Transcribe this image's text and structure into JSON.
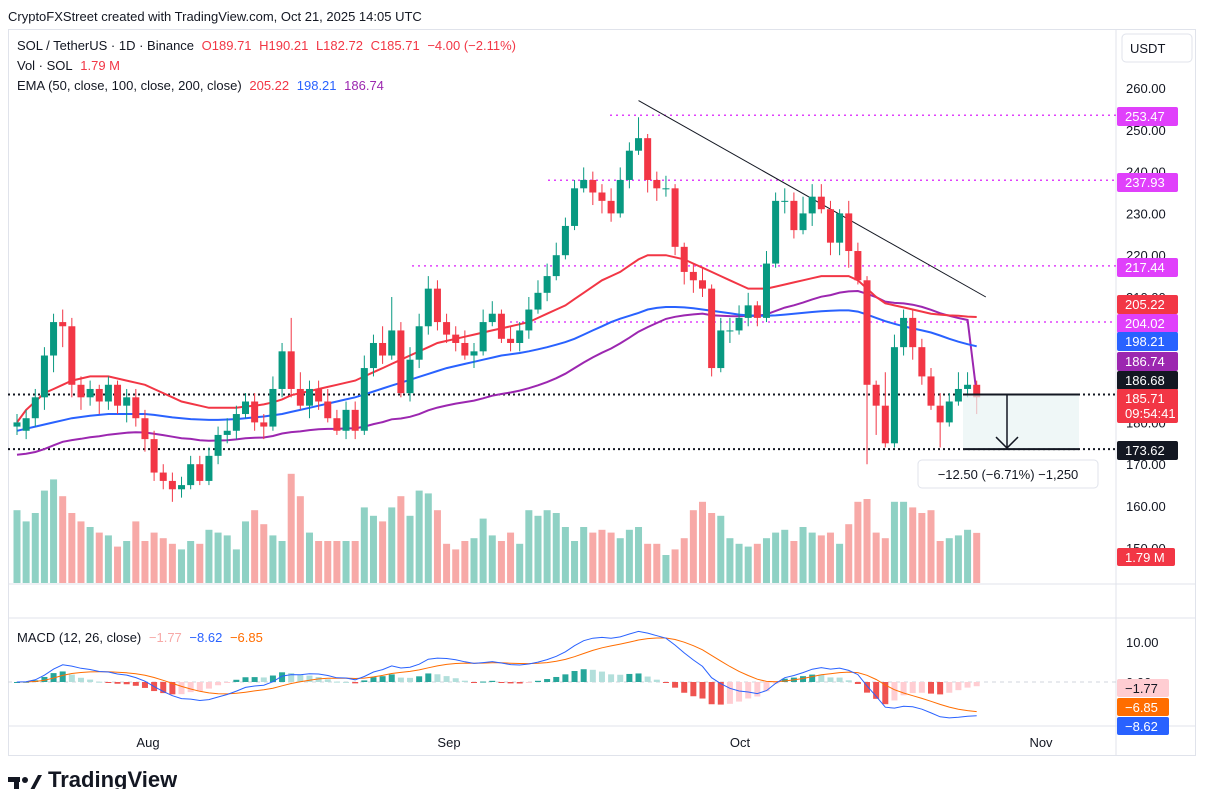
{
  "caption": "CryptoFXStreet created with TradingView.com, Oct 21, 2025 14:05 UTC",
  "brand": "TradingView",
  "currency_button": "USDT",
  "legend": {
    "symbol": "SOL / TetherUS · 1D · Binance",
    "open": "O189.71",
    "high": "H190.21",
    "low": "L182.72",
    "close": "C185.71",
    "change": "−4.00 (−2.11%)",
    "vol_label": "Vol · SOL",
    "vol_value": "1.79 M",
    "ema_label": "EMA (50, close, 100, close, 200, close)",
    "ema50": "205.22",
    "ema100": "198.21",
    "ema200": "186.74",
    "macd_label": "MACD (12, 26, close)",
    "macd_hist": "−1.77",
    "macd_line": "−8.62",
    "macd_signal": "−6.85"
  },
  "measure_label": "−12.50 (−6.71%) −1,250",
  "colors": {
    "up": "#089981",
    "down": "#f23645",
    "ema50": "#f23645",
    "ema100": "#2962ff",
    "ema200": "#9c27b0",
    "resistance": "#e040fb",
    "macd_line": "#2962ff",
    "signal_line": "#ff6d00",
    "vol_up": "#8fd1c4",
    "vol_down": "#f7a9a7"
  },
  "chart_data": {
    "type": "candlestick",
    "price_axis": {
      "ticks": [
        "260.00",
        "250.00",
        "240.00",
        "230.00",
        "220.00",
        "210.00",
        "200.00",
        "190.00",
        "180.00",
        "170.00",
        "160.00",
        "150.00"
      ],
      "range": [
        144,
        264
      ]
    },
    "macd_axis": {
      "ticks": [
        "10.00",
        "0.00"
      ],
      "range": [
        -10,
        13
      ]
    },
    "time_axis": {
      "labels": [
        "Aug",
        "Sep",
        "Oct",
        "Nov"
      ]
    },
    "price_labels": [
      {
        "text": "253.47",
        "kind": "resistance"
      },
      {
        "text": "237.93",
        "kind": "resistance"
      },
      {
        "text": "217.44",
        "kind": "resistance"
      },
      {
        "text": "205.22",
        "kind": "ema50"
      },
      {
        "text": "204.02",
        "kind": "resistance"
      },
      {
        "text": "198.21",
        "kind": "ema100"
      },
      {
        "text": "186.74",
        "kind": "ema200"
      },
      {
        "text": "186.68",
        "kind": "support"
      },
      {
        "text": "185.71",
        "kind": "last",
        "countdown": "09:54:41"
      },
      {
        "text": "173.62",
        "kind": "support"
      }
    ],
    "volume_label": "1.79 M",
    "macd_labels": [
      "−1.77",
      "−6.85",
      "−8.62"
    ],
    "levels": {
      "r1": 253.47,
      "r2": 237.93,
      "r3": 217.44,
      "r4": 204.02,
      "s1": 186.68,
      "s2": 173.62
    },
    "trendline": [
      [
        188,
        257
      ],
      [
        246,
        210
      ]
    ],
    "candles": [
      [
        179,
        180,
        182,
        177
      ],
      [
        178,
        181,
        183,
        176
      ],
      [
        181,
        186,
        188,
        179
      ],
      [
        186,
        196,
        198,
        183
      ],
      [
        196,
        204,
        206,
        192
      ],
      [
        204,
        203,
        207,
        198
      ],
      [
        203,
        189,
        205,
        186
      ],
      [
        189,
        186,
        191,
        183
      ],
      [
        186,
        188,
        190,
        184
      ],
      [
        188,
        185,
        189,
        182
      ],
      [
        185,
        189,
        191,
        183
      ],
      [
        189,
        184,
        190,
        182
      ],
      [
        184,
        186,
        188,
        180
      ],
      [
        186,
        181,
        188,
        179
      ],
      [
        181,
        176,
        183,
        173
      ],
      [
        176,
        168,
        178,
        166
      ],
      [
        168,
        166,
        170,
        164
      ],
      [
        166,
        164,
        168,
        161
      ],
      [
        164,
        165,
        167,
        162
      ],
      [
        165,
        170,
        172,
        164
      ],
      [
        170,
        166,
        172,
        165
      ],
      [
        166,
        172,
        174,
        165
      ],
      [
        172,
        177,
        179,
        170
      ],
      [
        177,
        178,
        181,
        175
      ],
      [
        178,
        182,
        184,
        176
      ],
      [
        182,
        185,
        187,
        181
      ],
      [
        185,
        180,
        187,
        178
      ],
      [
        180,
        179,
        182,
        176
      ],
      [
        179,
        188,
        191,
        178
      ],
      [
        188,
        197,
        199,
        186
      ],
      [
        197,
        188,
        205,
        186
      ],
      [
        188,
        184,
        192,
        183
      ],
      [
        184,
        188,
        190,
        181
      ],
      [
        188,
        185,
        190,
        183
      ],
      [
        185,
        181,
        188,
        180
      ],
      [
        181,
        178,
        183,
        177
      ],
      [
        178,
        183,
        185,
        176
      ],
      [
        183,
        178,
        185,
        176
      ],
      [
        178,
        193,
        196,
        177
      ],
      [
        193,
        199,
        201,
        191
      ],
      [
        199,
        196,
        203,
        194
      ],
      [
        196,
        202,
        210,
        195
      ],
      [
        202,
        187,
        204,
        186
      ],
      [
        187,
        195,
        198,
        185
      ],
      [
        195,
        203,
        206,
        193
      ],
      [
        203,
        212,
        215,
        201
      ],
      [
        212,
        204,
        214,
        202
      ],
      [
        204,
        201,
        206,
        199
      ],
      [
        201,
        199,
        203,
        197
      ],
      [
        199,
        196,
        202,
        195
      ],
      [
        196,
        197,
        199,
        193
      ],
      [
        197,
        204,
        207,
        196
      ],
      [
        204,
        206,
        209,
        203
      ],
      [
        206,
        200,
        207,
        199
      ],
      [
        200,
        199,
        203,
        197
      ],
      [
        199,
        202,
        204,
        197
      ],
      [
        202,
        207,
        210,
        200
      ],
      [
        207,
        211,
        214,
        206
      ],
      [
        211,
        215,
        218,
        209
      ],
      [
        215,
        220,
        223,
        214
      ],
      [
        220,
        227,
        229,
        219
      ],
      [
        227,
        236,
        238,
        226
      ],
      [
        236,
        238,
        241,
        235
      ],
      [
        238,
        235,
        240,
        232
      ],
      [
        235,
        233,
        237,
        230
      ],
      [
        233,
        230,
        236,
        228
      ],
      [
        230,
        238,
        241,
        229
      ],
      [
        238,
        245,
        247,
        236
      ],
      [
        245,
        248,
        253,
        244
      ],
      [
        248,
        238,
        249,
        235
      ],
      [
        238,
        236,
        240,
        233
      ],
      [
        236,
        236,
        239,
        234
      ],
      [
        236,
        222,
        237,
        220
      ],
      [
        222,
        216,
        223,
        213
      ],
      [
        216,
        214,
        218,
        211
      ],
      [
        214,
        212,
        217,
        210
      ],
      [
        212,
        193,
        213,
        191
      ],
      [
        193,
        202,
        205,
        192
      ],
      [
        202,
        202,
        205,
        199
      ],
      [
        202,
        205,
        208,
        201
      ],
      [
        205,
        208,
        211,
        203
      ],
      [
        208,
        205,
        209,
        203
      ],
      [
        205,
        218,
        221,
        204
      ],
      [
        218,
        233,
        235,
        217
      ],
      [
        233,
        233,
        236,
        230
      ],
      [
        233,
        226,
        235,
        224
      ],
      [
        226,
        230,
        234,
        225
      ],
      [
        230,
        234,
        237,
        227
      ],
      [
        234,
        231,
        237,
        230
      ],
      [
        231,
        223,
        233,
        220
      ],
      [
        223,
        230,
        231,
        220
      ],
      [
        230,
        221,
        233,
        217
      ],
      [
        221,
        214,
        223,
        213
      ],
      [
        214,
        189,
        215,
        170
      ],
      [
        189,
        184,
        190,
        177
      ],
      [
        184,
        175,
        192,
        174
      ],
      [
        175,
        198,
        201,
        174
      ],
      [
        198,
        205,
        207,
        196
      ],
      [
        205,
        198,
        207,
        195
      ],
      [
        198,
        191,
        200,
        189
      ],
      [
        191,
        184,
        193,
        183
      ],
      [
        184,
        180,
        187,
        174
      ],
      [
        180,
        185,
        187,
        179
      ],
      [
        185,
        188,
        192,
        184
      ],
      [
        188,
        189,
        192,
        186
      ],
      [
        189,
        186,
        190,
        182
      ]
    ],
    "volume": [
      2.6,
      2.2,
      2.5,
      3.3,
      3.7,
      3.1,
      2.5,
      2.2,
      2.0,
      1.8,
      1.7,
      1.3,
      1.5,
      2.2,
      1.5,
      1.8,
      1.6,
      1.4,
      1.2,
      1.5,
      1.4,
      1.9,
      1.8,
      1.7,
      1.2,
      2.2,
      2.6,
      2.1,
      1.7,
      1.5,
      3.9,
      3.1,
      1.8,
      1.5,
      1.5,
      1.5,
      1.5,
      1.5,
      2.7,
      2.4,
      2.2,
      2.7,
      3.1,
      2.4,
      3.3,
      3.2,
      2.6,
      1.4,
      1.2,
      1.5,
      1.6,
      2.3,
      1.7,
      1.5,
      1.8,
      1.4,
      2.6,
      2.4,
      2.6,
      2.5,
      2.0,
      1.5,
      2.0,
      1.8,
      1.9,
      1.8,
      1.6,
      1.9,
      2.0,
      1.4,
      1.4,
      1.0,
      1.2,
      1.6,
      2.6,
      2.9,
      2.5,
      2.4,
      1.6,
      1.4,
      1.3,
      1.4,
      1.6,
      1.8,
      1.9,
      1.5,
      2.0,
      1.8,
      1.7,
      1.8,
      1.4,
      2.1,
      2.9,
      3.0,
      1.8,
      1.6,
      2.9,
      2.9,
      2.7,
      2.5,
      2.6,
      1.5,
      1.6,
      1.7,
      1.9,
      1.79
    ],
    "ema50": [
      180,
      183,
      185,
      187,
      188,
      189,
      190,
      190.5,
      191,
      191,
      191,
      190.5,
      190,
      189.5,
      189,
      188,
      187,
      186,
      185,
      184.5,
      184,
      183.5,
      183.5,
      183.5,
      183.5,
      183.8,
      184,
      184.3,
      184.8,
      185.5,
      186.5,
      187,
      187.5,
      188,
      188.5,
      189,
      189.5,
      190,
      191,
      192,
      193,
      194,
      195,
      196,
      197,
      198,
      199,
      199.5,
      200,
      200.5,
      201,
      201.5,
      202,
      202.5,
      203,
      203.5,
      204,
      205,
      206,
      207,
      208,
      209.5,
      211,
      212.5,
      214,
      215,
      216,
      217.5,
      219,
      220,
      220,
      220,
      219.5,
      219,
      218,
      217,
      216,
      215,
      214,
      213,
      212,
      212,
      212,
      212.5,
      213,
      213.5,
      214,
      214.5,
      215,
      215,
      215,
      215,
      214,
      212,
      210,
      208.5,
      208,
      207.5,
      207,
      206.5,
      206,
      205.8,
      205.6,
      205.5,
      205.3,
      205.22
    ],
    "ema100": [
      178,
      178.5,
      179,
      179.5,
      180,
      180.5,
      181,
      181.3,
      181.6,
      181.8,
      182,
      182,
      182,
      182,
      182,
      181.8,
      181.5,
      181.2,
      181,
      180.8,
      180.7,
      180.6,
      180.6,
      180.7,
      180.8,
      181,
      181.2,
      181.4,
      181.7,
      182,
      182.5,
      183,
      183.5,
      184,
      184.5,
      185,
      185.5,
      186,
      186.7,
      187.4,
      188.1,
      188.8,
      189.5,
      190.2,
      190.9,
      191.6,
      192.3,
      193,
      193.5,
      194,
      194.5,
      195,
      195.5,
      196,
      196.3,
      196.6,
      197,
      197.5,
      198,
      198.6,
      199.2,
      200,
      201,
      202,
      203,
      204,
      204.8,
      205.5,
      206.2,
      207,
      207.4,
      207.6,
      207.6,
      207.5,
      207.3,
      207,
      206.7,
      206.4,
      206.1,
      205.8,
      205.6,
      205.5,
      205.5,
      205.6,
      205.8,
      206,
      206.2,
      206.4,
      206.6,
      206.7,
      206.8,
      206.8,
      206.5,
      205.8,
      205,
      204.2,
      203.6,
      203,
      202.5,
      202,
      201.5,
      200.8,
      200,
      199.3,
      198.7,
      198.21
    ]
  }
}
